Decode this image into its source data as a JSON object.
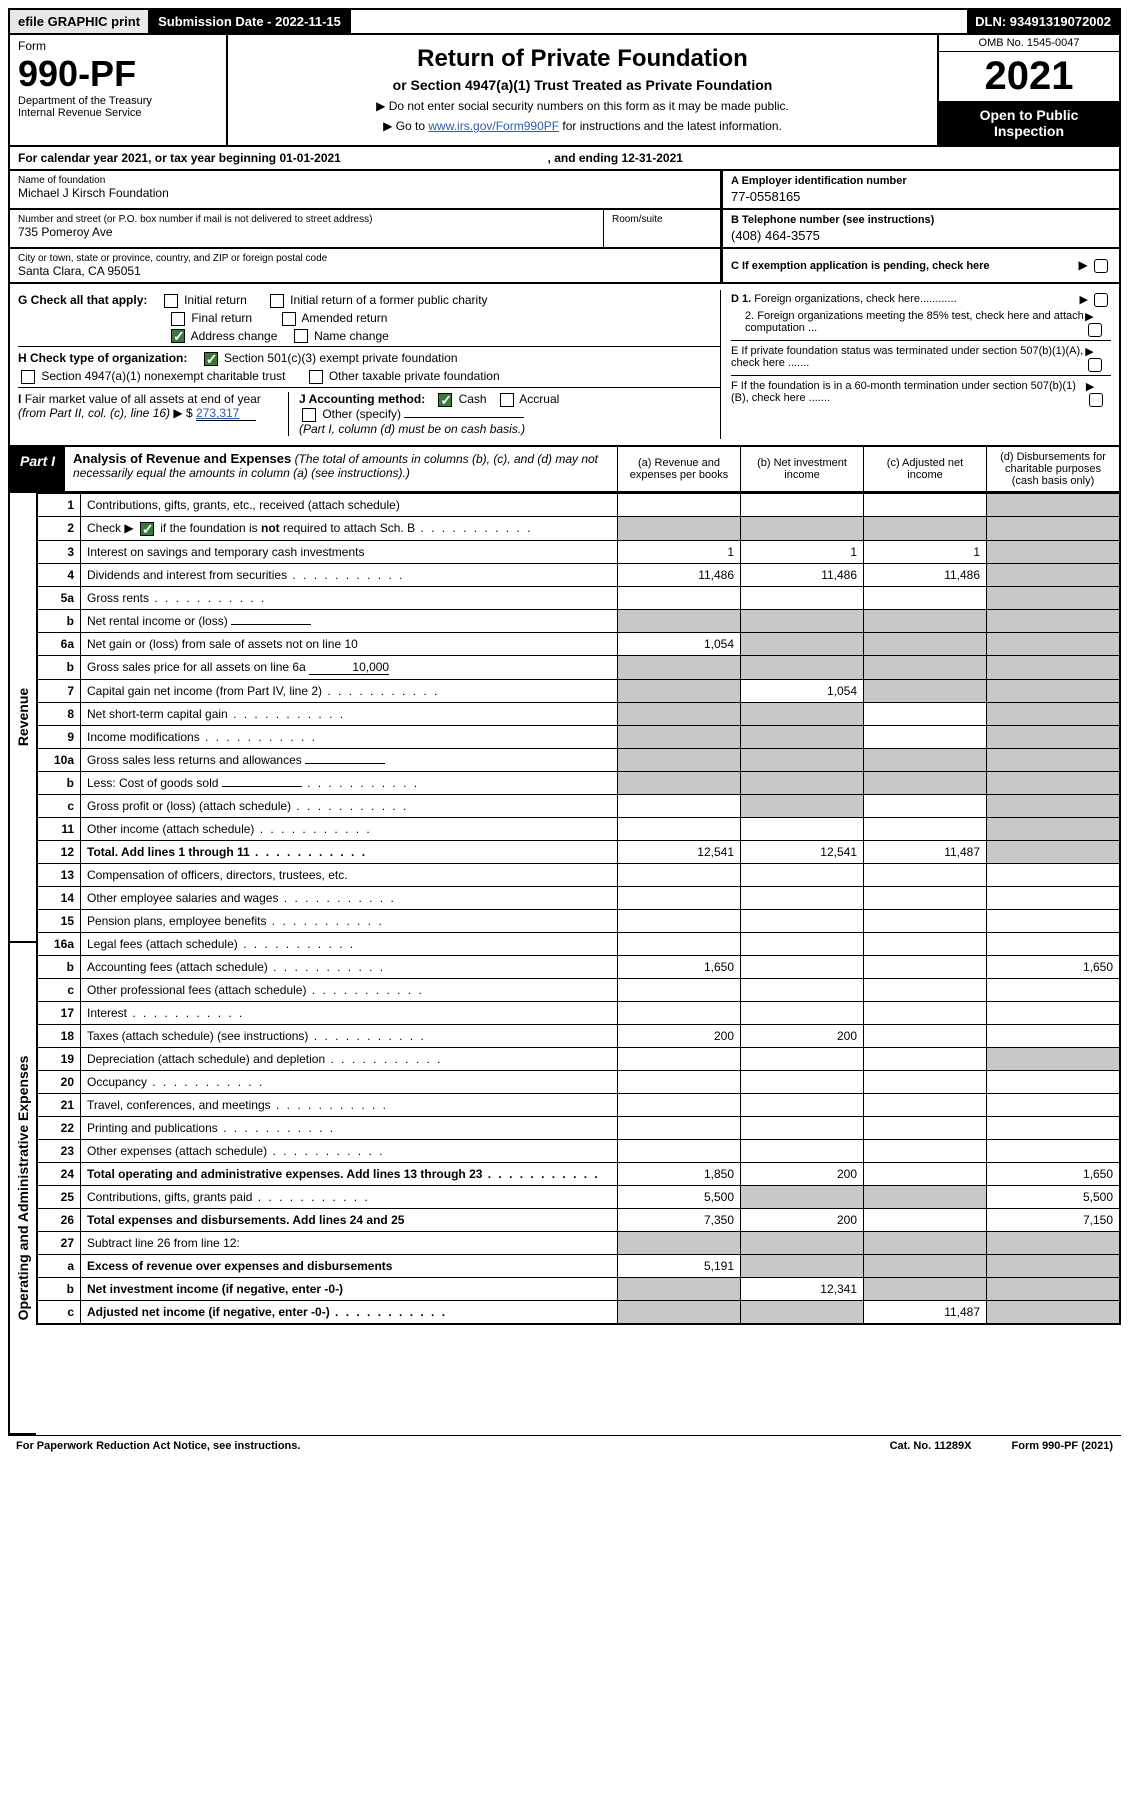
{
  "topbar": {
    "efile": "efile GRAPHIC print",
    "submission_label": "Submission Date - 2022-11-15",
    "dln": "DLN: 93491319072002"
  },
  "header": {
    "form_label": "Form",
    "form_number": "990-PF",
    "dept": "Department of the Treasury",
    "irs": "Internal Revenue Service",
    "title": "Return of Private Foundation",
    "subtitle": "or Section 4947(a)(1) Trust Treated as Private Foundation",
    "instr1": "▶ Do not enter social security numbers on this form as it may be made public.",
    "instr2_prefix": "▶ Go to ",
    "instr2_link": "www.irs.gov/Form990PF",
    "instr2_suffix": " for instructions and the latest information.",
    "omb": "OMB No. 1545-0047",
    "year": "2021",
    "open": "Open to Public Inspection"
  },
  "calendar": {
    "text_prefix": "For calendar year 2021, or tax year beginning ",
    "begin": "01-01-2021",
    "mid": " , and ending ",
    "end": "12-31-2021"
  },
  "entity": {
    "name_label": "Name of foundation",
    "name": "Michael J Kirsch Foundation",
    "addr_label": "Number and street (or P.O. box number if mail is not delivered to street address)",
    "addr": "735 Pomeroy Ave",
    "room_label": "Room/suite",
    "city_label": "City or town, state or province, country, and ZIP or foreign postal code",
    "city": "Santa Clara, CA  95051",
    "A_label": "A Employer identification number",
    "A_val": "77-0558165",
    "B_label": "B Telephone number (see instructions)",
    "B_val": "(408) 464-3575",
    "C_label": "C If exemption application is pending, check here",
    "D1": "D 1. Foreign organizations, check here............",
    "D2": "2. Foreign organizations meeting the 85% test, check here and attach computation ...",
    "E": "E  If private foundation status was terminated under section 507(b)(1)(A), check here .......",
    "F": "F  If the foundation is in a 60-month termination under section 507(b)(1)(B), check here ......."
  },
  "G": {
    "label": "G Check all that apply:",
    "initial": "Initial return",
    "initial_former": "Initial return of a former public charity",
    "final": "Final return",
    "amended": "Amended return",
    "address": "Address change",
    "name": "Name change"
  },
  "H": {
    "label": "H Check type of organization:",
    "c3": "Section 501(c)(3) exempt private foundation",
    "trust": "Section 4947(a)(1) nonexempt charitable trust",
    "other": "Other taxable private foundation"
  },
  "I": {
    "label": "I Fair market value of all assets at end of year (from Part II, col. (c), line 16) ▶ $",
    "value": "273,317"
  },
  "J": {
    "label": "J Accounting method:",
    "cash": "Cash",
    "accrual": "Accrual",
    "other": "Other (specify)",
    "note": "(Part I, column (d) must be on cash basis.)"
  },
  "part1": {
    "part": "Part I",
    "title": "Analysis of Revenue and Expenses",
    "title_note": "(The total of amounts in columns (b), (c), and (d) may not necessarily equal the amounts in column (a) (see instructions).)",
    "col_a": "(a)  Revenue and expenses per books",
    "col_b": "(b)  Net investment income",
    "col_c": "(c)  Adjusted net income",
    "col_d": "(d)  Disbursements for charitable purposes (cash basis only)",
    "side_revenue": "Revenue",
    "side_expenses": "Operating and Administrative Expenses",
    "rows": [
      {
        "n": "1",
        "t": "Contributions, gifts, grants, etc., received (attach schedule)",
        "a": "",
        "b": "",
        "c": "",
        "d": "grey"
      },
      {
        "n": "2",
        "t": "Check ▶ ☑ if the foundation is not required to attach Sch. B",
        "dots": true,
        "a": "grey",
        "b": "grey",
        "c": "grey",
        "d": "grey",
        "chk": true
      },
      {
        "n": "3",
        "t": "Interest on savings and temporary cash investments",
        "a": "1",
        "b": "1",
        "c": "1",
        "d": "grey"
      },
      {
        "n": "4",
        "t": "Dividends and interest from securities",
        "dots": true,
        "a": "11,486",
        "b": "11,486",
        "c": "11,486",
        "d": "grey"
      },
      {
        "n": "5a",
        "t": "Gross rents",
        "dots": true,
        "a": "",
        "b": "",
        "c": "",
        "d": "grey"
      },
      {
        "n": "b",
        "t": "Net rental income or (loss)",
        "inline": "",
        "a": "grey",
        "b": "grey",
        "c": "grey",
        "d": "grey"
      },
      {
        "n": "6a",
        "t": "Net gain or (loss) from sale of assets not on line 10",
        "a": "1,054",
        "b": "grey",
        "c": "grey",
        "d": "grey"
      },
      {
        "n": "b",
        "t": "Gross sales price for all assets on line 6a",
        "inline": "10,000",
        "a": "grey",
        "b": "grey",
        "c": "grey",
        "d": "grey"
      },
      {
        "n": "7",
        "t": "Capital gain net income (from Part IV, line 2)",
        "dots": true,
        "a": "grey",
        "b": "1,054",
        "c": "grey",
        "d": "grey"
      },
      {
        "n": "8",
        "t": "Net short-term capital gain",
        "dots": true,
        "a": "grey",
        "b": "grey",
        "c": "",
        "d": "grey"
      },
      {
        "n": "9",
        "t": "Income modifications",
        "dots": true,
        "a": "grey",
        "b": "grey",
        "c": "",
        "d": "grey"
      },
      {
        "n": "10a",
        "t": "Gross sales less returns and allowances",
        "inline": "",
        "a": "grey",
        "b": "grey",
        "c": "grey",
        "d": "grey"
      },
      {
        "n": "b",
        "t": "Less: Cost of goods sold",
        "dots": true,
        "inline": "",
        "a": "grey",
        "b": "grey",
        "c": "grey",
        "d": "grey"
      },
      {
        "n": "c",
        "t": "Gross profit or (loss) (attach schedule)",
        "dots": true,
        "a": "",
        "b": "grey",
        "c": "",
        "d": "grey"
      },
      {
        "n": "11",
        "t": "Other income (attach schedule)",
        "dots": true,
        "a": "",
        "b": "",
        "c": "",
        "d": "grey"
      },
      {
        "n": "12",
        "t": "Total. Add lines 1 through 11",
        "dots": true,
        "bold": true,
        "a": "12,541",
        "b": "12,541",
        "c": "11,487",
        "d": "grey"
      },
      {
        "n": "13",
        "t": "Compensation of officers, directors, trustees, etc.",
        "a": "",
        "b": "",
        "c": "",
        "d": ""
      },
      {
        "n": "14",
        "t": "Other employee salaries and wages",
        "dots": true,
        "a": "",
        "b": "",
        "c": "",
        "d": ""
      },
      {
        "n": "15",
        "t": "Pension plans, employee benefits",
        "dots": true,
        "a": "",
        "b": "",
        "c": "",
        "d": ""
      },
      {
        "n": "16a",
        "t": "Legal fees (attach schedule)",
        "dots": true,
        "a": "",
        "b": "",
        "c": "",
        "d": ""
      },
      {
        "n": "b",
        "t": "Accounting fees (attach schedule)",
        "dots": true,
        "a": "1,650",
        "b": "",
        "c": "",
        "d": "1,650"
      },
      {
        "n": "c",
        "t": "Other professional fees (attach schedule)",
        "dots": true,
        "a": "",
        "b": "",
        "c": "",
        "d": ""
      },
      {
        "n": "17",
        "t": "Interest",
        "dots": true,
        "a": "",
        "b": "",
        "c": "",
        "d": ""
      },
      {
        "n": "18",
        "t": "Taxes (attach schedule) (see instructions)",
        "dots": true,
        "a": "200",
        "b": "200",
        "c": "",
        "d": ""
      },
      {
        "n": "19",
        "t": "Depreciation (attach schedule) and depletion",
        "dots": true,
        "a": "",
        "b": "",
        "c": "",
        "d": "grey"
      },
      {
        "n": "20",
        "t": "Occupancy",
        "dots": true,
        "a": "",
        "b": "",
        "c": "",
        "d": ""
      },
      {
        "n": "21",
        "t": "Travel, conferences, and meetings",
        "dots": true,
        "a": "",
        "b": "",
        "c": "",
        "d": ""
      },
      {
        "n": "22",
        "t": "Printing and publications",
        "dots": true,
        "a": "",
        "b": "",
        "c": "",
        "d": ""
      },
      {
        "n": "23",
        "t": "Other expenses (attach schedule)",
        "dots": true,
        "a": "",
        "b": "",
        "c": "",
        "d": ""
      },
      {
        "n": "24",
        "t": "Total operating and administrative expenses. Add lines 13 through 23",
        "dots": true,
        "bold": true,
        "a": "1,850",
        "b": "200",
        "c": "",
        "d": "1,650"
      },
      {
        "n": "25",
        "t": "Contributions, gifts, grants paid",
        "dots": true,
        "a": "5,500",
        "b": "grey",
        "c": "grey",
        "d": "5,500"
      },
      {
        "n": "26",
        "t": "Total expenses and disbursements. Add lines 24 and 25",
        "bold": true,
        "a": "7,350",
        "b": "200",
        "c": "",
        "d": "7,150"
      },
      {
        "n": "27",
        "t": "Subtract line 26 from line 12:",
        "a": "grey",
        "b": "grey",
        "c": "grey",
        "d": "grey"
      },
      {
        "n": "a",
        "t": "Excess of revenue over expenses and disbursements",
        "bold": true,
        "a": "5,191",
        "b": "grey",
        "c": "grey",
        "d": "grey"
      },
      {
        "n": "b",
        "t": "Net investment income (if negative, enter -0-)",
        "bold": true,
        "a": "grey",
        "b": "12,341",
        "c": "grey",
        "d": "grey"
      },
      {
        "n": "c",
        "t": "Adjusted net income (if negative, enter -0-)",
        "dots": true,
        "bold": true,
        "a": "grey",
        "b": "grey",
        "c": "11,487",
        "d": "grey"
      }
    ]
  },
  "footer": {
    "left": "For Paperwork Reduction Act Notice, see instructions.",
    "cat": "Cat. No. 11289X",
    "form": "Form 990-PF (2021)"
  },
  "colors": {
    "link": "#2a5db0",
    "check_green": "#3a7b3a",
    "grey_cell": "#c8c8c8",
    "topbar_grey": "#e8e8e8"
  }
}
